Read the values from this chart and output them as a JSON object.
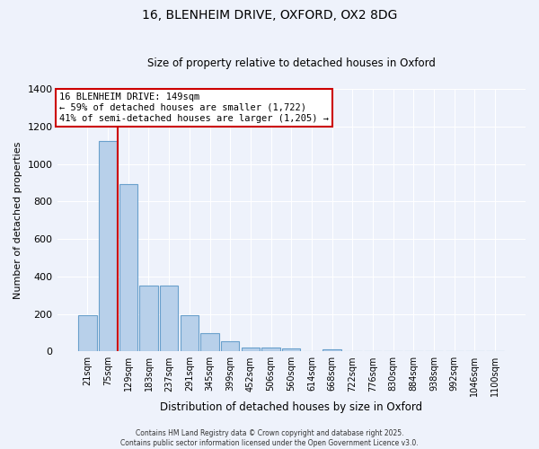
{
  "title_line1": "16, BLENHEIM DRIVE, OXFORD, OX2 8DG",
  "title_line2": "Size of property relative to detached houses in Oxford",
  "xlabel": "Distribution of detached houses by size in Oxford",
  "ylabel": "Number of detached properties",
  "categories": [
    "21sqm",
    "75sqm",
    "129sqm",
    "183sqm",
    "237sqm",
    "291sqm",
    "345sqm",
    "399sqm",
    "452sqm",
    "506sqm",
    "560sqm",
    "614sqm",
    "668sqm",
    "722sqm",
    "776sqm",
    "830sqm",
    "884sqm",
    "938sqm",
    "992sqm",
    "1046sqm",
    "1100sqm"
  ],
  "values": [
    195,
    1120,
    890,
    350,
    350,
    195,
    95,
    55,
    20,
    20,
    15,
    0,
    12,
    0,
    0,
    0,
    0,
    0,
    0,
    0,
    0
  ],
  "bar_color": "#b8d0ea",
  "bar_edge_color": "#6aa0cc",
  "red_line_x": 1.5,
  "annotation_text": "16 BLENHEIM DRIVE: 149sqm\n← 59% of detached houses are smaller (1,722)\n41% of semi-detached houses are larger (1,205) →",
  "annotation_box_color": "#ffffff",
  "annotation_box_edge_color": "#cc0000",
  "red_line_color": "#cc0000",
  "background_color": "#eef2fb",
  "grid_color": "#ffffff",
  "footer_text": "Contains HM Land Registry data © Crown copyright and database right 2025.\nContains public sector information licensed under the Open Government Licence v3.0.",
  "ylim": [
    0,
    1400
  ],
  "yticks": [
    0,
    200,
    400,
    600,
    800,
    1000,
    1200,
    1400
  ]
}
